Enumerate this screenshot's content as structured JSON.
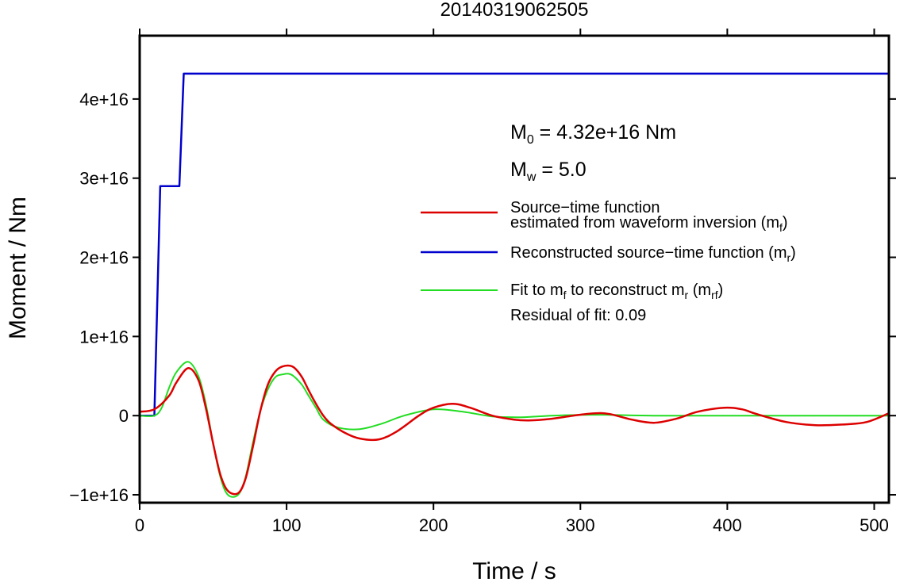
{
  "chart_data": {
    "type": "line",
    "title": "20140319062505",
    "xlabel": "Time / s",
    "ylabel": "Moment / Nm",
    "xlim": [
      0,
      510
    ],
    "ylim": [
      -11000000000000000,
      48000000000000000
    ],
    "xticks": [
      0,
      100,
      200,
      300,
      400,
      500
    ],
    "xtick_labels": [
      "0",
      "100",
      "200",
      "300",
      "400",
      "500"
    ],
    "yticks": [
      -10000000000000000,
      0,
      10000000000000000,
      20000000000000000,
      30000000000000000,
      40000000000000000
    ],
    "ytick_labels": [
      "−1e+16",
      "0",
      "1e+16",
      "2e+16",
      "3e+16",
      "4e+16"
    ],
    "grid": false,
    "legend_position": "right",
    "annotations": {
      "m0_main": "M",
      "m0_sub": "0",
      "m0_value": " = 4.32e+16 Nm",
      "mw_main": "M",
      "mw_sub": "w",
      "mw_value": " = 5.0",
      "residual": "Residual of fit: 0.09"
    },
    "series": [
      {
        "name": "Source−time function estimated from waveform inversion (mf)",
        "legend_line1": "Source−time function",
        "legend_line2": "estimated from waveform inversion (m",
        "legend_sub": "f",
        "legend_tail": ")",
        "color": "#dd0000",
        "x": [
          0,
          10,
          20,
          25,
          33,
          40,
          45,
          50,
          55,
          60,
          67,
          72,
          77,
          82,
          87,
          92,
          97,
          104,
          110,
          115,
          120,
          125,
          130,
          140,
          150,
          163,
          175,
          190,
          200,
          213,
          225,
          240,
          255,
          265,
          280,
          295,
          310,
          320,
          335,
          350,
          365,
          380,
          398,
          410,
          420,
          440,
          460,
          480,
          495,
          510
        ],
        "y": [
          500000000000000.0,
          800000000000000.0,
          2500000000000000.0,
          4200000000000000.0,
          6000000000000000.0,
          4500000000000000.0,
          1000000000000000.0,
          -3500000000000000.0,
          -7500000000000000.0,
          -9500000000000000.0,
          -9800000000000000.0,
          -8000000000000000.0,
          -4000000000000000.0,
          500000000000000.0,
          3800000000000000.0,
          5500000000000000.0,
          6200000000000000.0,
          6200000000000000.0,
          5000000000000000.0,
          3200000000000000.0,
          1500000000000000.0,
          0.0,
          -1000000000000000.0,
          -2200000000000000.0,
          -2900000000000000.0,
          -3000000000000000.0,
          -2000000000000000.0,
          0.0,
          1000000000000000.0,
          1500000000000000.0,
          1000000000000000.0,
          0.0,
          -500000000000000.0,
          -600000000000000.0,
          -400000000000000.0,
          0.0,
          300000000000000.0,
          200000000000000.0,
          -500000000000000.0,
          -900000000000000.0,
          -400000000000000.0,
          500000000000000.0,
          1000000000000000.0,
          800000000000000.0,
          200000000000000.0,
          -800000000000000.0,
          -1200000000000000.0,
          -1100000000000000.0,
          -800000000000000.0,
          300000000000000.0
        ]
      },
      {
        "name": "Reconstructed source−time function (mr)",
        "legend_line1": "Reconstructed source−time function (m",
        "legend_sub": "r",
        "legend_tail": ")",
        "color": "#0000cc",
        "step": true,
        "x": [
          0,
          9,
          10,
          14,
          15,
          26,
          27,
          30,
          31,
          510
        ],
        "y": [
          0,
          0,
          0,
          2.9e+16,
          2.9e+16,
          2.9e+16,
          2.9e+16,
          4.32e+16,
          4.32e+16,
          4.32e+16
        ]
      },
      {
        "name": "Fit to mf to reconstruct mr (mrf)",
        "legend_line1": "Fit to m",
        "legend_sub1": "f",
        "legend_line1b": " to reconstruct m",
        "legend_sub2": "r",
        "legend_line1c": " (m",
        "legend_sub3": "rf",
        "legend_tail": ")",
        "color": "#22dd22",
        "x": [
          0,
          10,
          15,
          20,
          25,
          33,
          40,
          45,
          50,
          55,
          60,
          67,
          72,
          77,
          82,
          87,
          92,
          97,
          103,
          110,
          115,
          120,
          125,
          135,
          150,
          165,
          180,
          200,
          220,
          240,
          260,
          280,
          300,
          320,
          350,
          400,
          450,
          510
        ],
        "y": [
          0,
          0,
          1000000000000000.0,
          3500000000000000.0,
          5500000000000000.0,
          6800000000000000.0,
          5000000000000000.0,
          1500000000000000.0,
          -3500000000000000.0,
          -7800000000000000.0,
          -1e+16,
          -1e+16,
          -7800000000000000.0,
          -3500000000000000.0,
          500000000000000.0,
          3200000000000000.0,
          4800000000000000.0,
          5200000000000000.0,
          5200000000000000.0,
          4000000000000000.0,
          2500000000000000.0,
          1000000000000000.0,
          -500000000000000.0,
          -1500000000000000.0,
          -1700000000000000.0,
          -1000000000000000.0,
          0.0,
          800000000000000.0,
          500000000000000.0,
          -100000000000000.0,
          -200000000000000.0,
          0.0,
          100000000000000.0,
          100000000000000.0,
          0.0,
          0.0,
          0.0,
          0.0
        ]
      }
    ]
  }
}
